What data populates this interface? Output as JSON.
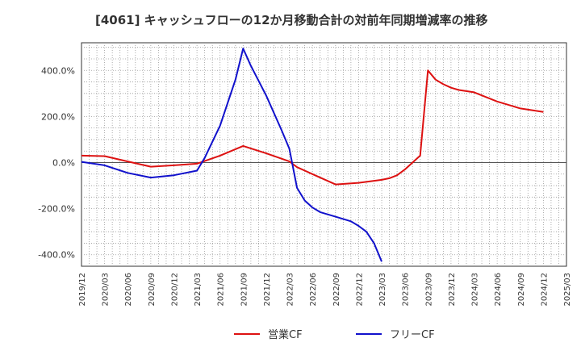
{
  "chart_data": {
    "type": "line",
    "title": "[4061]  キャッシュフローの12か月移動合計の対前年同期増減率の推移",
    "xlabel": "",
    "ylabel": "",
    "ylim": [
      -450,
      520
    ],
    "yticks": [
      400,
      200,
      0,
      -200,
      -400
    ],
    "ytick_labels": [
      "400.0%",
      "200.0%",
      "0.0%",
      "-200.0%",
      "-400.0%"
    ],
    "x_start": "2019-12",
    "x_end": "2025-03",
    "xtick_labels": [
      "2019/12",
      "2020/03",
      "2020/06",
      "2020/09",
      "2020/12",
      "2021/03",
      "2021/06",
      "2021/09",
      "2021/12",
      "2022/03",
      "2022/06",
      "2022/09",
      "2022/12",
      "2023/03",
      "2023/06",
      "2023/09",
      "2023/12",
      "2024/03",
      "2024/06",
      "2024/09",
      "2024/12",
      "2025/03"
    ],
    "legend_position": "bottom",
    "grid": true,
    "series": [
      {
        "name": "営業CF",
        "color": "#dd1111",
        "points": [
          [
            "2019-12",
            30
          ],
          [
            "2020-03",
            28
          ],
          [
            "2020-06",
            5
          ],
          [
            "2020-09",
            -18
          ],
          [
            "2020-12",
            -12
          ],
          [
            "2021-03",
            -5
          ],
          [
            "2021-06",
            30
          ],
          [
            "2021-09",
            72
          ],
          [
            "2021-12",
            40
          ],
          [
            "2022-03",
            5
          ],
          [
            "2022-04",
            -20
          ],
          [
            "2022-06",
            -50
          ],
          [
            "2022-09",
            -95
          ],
          [
            "2022-12",
            -88
          ],
          [
            "2023-03",
            -75
          ],
          [
            "2023-04",
            -68
          ],
          [
            "2023-05",
            -55
          ],
          [
            "2023-06",
            -30
          ],
          [
            "2023-08",
            30
          ],
          [
            "2023-09",
            400
          ],
          [
            "2023-10",
            360
          ],
          [
            "2023-11",
            340
          ],
          [
            "2023-12",
            325
          ],
          [
            "2024-01",
            315
          ],
          [
            "2024-03",
            305
          ],
          [
            "2024-06",
            265
          ],
          [
            "2024-09",
            235
          ],
          [
            "2024-12",
            220
          ]
        ]
      },
      {
        "name": "フリーCF",
        "color": "#1111cc",
        "points": [
          [
            "2019-12",
            3
          ],
          [
            "2020-03",
            -12
          ],
          [
            "2020-06",
            -45
          ],
          [
            "2020-09",
            -65
          ],
          [
            "2020-12",
            -55
          ],
          [
            "2021-03",
            -35
          ],
          [
            "2021-04",
            20
          ],
          [
            "2021-06",
            160
          ],
          [
            "2021-08",
            360
          ],
          [
            "2021-09",
            495
          ],
          [
            "2021-10",
            420
          ],
          [
            "2021-12",
            290
          ],
          [
            "2022-02",
            140
          ],
          [
            "2022-03",
            60
          ],
          [
            "2022-04",
            -110
          ],
          [
            "2022-05",
            -165
          ],
          [
            "2022-06",
            -195
          ],
          [
            "2022-07",
            -215
          ],
          [
            "2022-09",
            -235
          ],
          [
            "2022-11",
            -255
          ],
          [
            "2022-12",
            -275
          ],
          [
            "2023-01",
            -300
          ],
          [
            "2023-02",
            -350
          ],
          [
            "2023-03",
            -430
          ]
        ]
      }
    ]
  }
}
